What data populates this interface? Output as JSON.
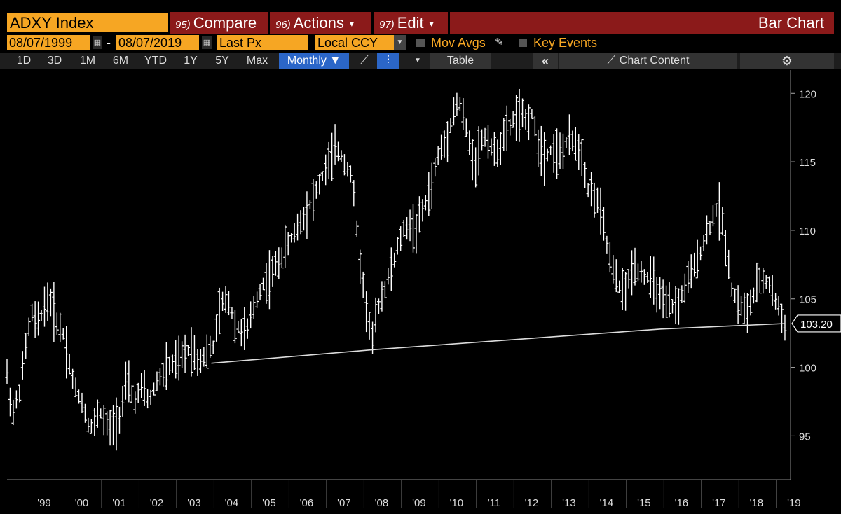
{
  "header": {
    "ticker": "ADXY Index",
    "compare": {
      "num": "95)",
      "label": "Compare"
    },
    "actions": {
      "num": "96)",
      "label": "Actions",
      "caret": "▾"
    },
    "edit": {
      "num": "97)",
      "label": "Edit",
      "caret": "▾"
    },
    "chart_title": "Bar Chart"
  },
  "fields": {
    "start_date": "08/07/1999",
    "separator": "-",
    "end_date": "08/07/2019",
    "price_field": "Last Px",
    "currency": "Local CCY",
    "mov_avgs": "Mov Avgs",
    "key_events": "Key Events"
  },
  "toolbar": {
    "ranges": [
      "1D",
      "3D",
      "1M",
      "6M",
      "YTD",
      "1Y",
      "5Y",
      "Max"
    ],
    "periodicity": "Monthly ▼",
    "table": "Table",
    "collapse": "«",
    "chart_content": "Chart Content",
    "settings_icon": "gear-icon"
  },
  "colors": {
    "accent": "#f6a623",
    "header_red": "#8b1a1a",
    "selected": "#2b66c8",
    "line": "#ffffff",
    "background": "#000000"
  },
  "chart_data": {
    "type": "line",
    "x_tick_labels": [
      "'99",
      "'00",
      "'01",
      "'02",
      "'03",
      "'04",
      "'05",
      "'06",
      "'07",
      "'08",
      "'09",
      "'10",
      "'11",
      "'12",
      "'13",
      "'14",
      "'15",
      "'16",
      "'17",
      "'18",
      "'19"
    ],
    "y_ticks": [
      95,
      100,
      105,
      110,
      115,
      120
    ],
    "ylim": [
      91.8,
      121.7
    ],
    "xlim": [
      1999.0,
      2019.9
    ],
    "last_value": "103.20",
    "series": [
      {
        "points": [
          [
            1999.0,
            99.5
          ],
          [
            1999.15,
            96.5
          ],
          [
            1999.35,
            98.5
          ],
          [
            1999.5,
            101.5
          ],
          [
            1999.65,
            104.0
          ],
          [
            1999.8,
            103.0
          ],
          [
            2000.0,
            104.5
          ],
          [
            2000.15,
            105.0
          ],
          [
            2000.3,
            103.5
          ],
          [
            2000.5,
            102.5
          ],
          [
            2000.65,
            100.5
          ],
          [
            2000.8,
            98.5
          ],
          [
            2001.0,
            97.5
          ],
          [
            2001.15,
            96.0
          ],
          [
            2001.3,
            95.5
          ],
          [
            2001.45,
            97.0
          ],
          [
            2001.6,
            96.0
          ],
          [
            2001.75,
            95.5
          ],
          [
            2002.0,
            96.5
          ],
          [
            2002.2,
            99.0
          ],
          [
            2002.4,
            97.5
          ],
          [
            2002.6,
            98.5
          ],
          [
            2002.8,
            97.5
          ],
          [
            2003.0,
            99.0
          ],
          [
            2003.3,
            100.0
          ],
          [
            2003.6,
            100.5
          ],
          [
            2003.9,
            101.5
          ],
          [
            2004.1,
            100.5
          ],
          [
            2004.3,
            101.0
          ],
          [
            2004.5,
            101.5
          ],
          [
            2004.7,
            104.5
          ],
          [
            2004.9,
            105.0
          ],
          [
            2005.1,
            103.0
          ],
          [
            2005.4,
            102.5
          ],
          [
            2005.6,
            104.5
          ],
          [
            2005.8,
            106.0
          ],
          [
            2006.0,
            106.5
          ],
          [
            2006.3,
            108.0
          ],
          [
            2006.6,
            109.5
          ],
          [
            2006.9,
            111.0
          ],
          [
            2007.2,
            112.5
          ],
          [
            2007.5,
            114.5
          ],
          [
            2007.8,
            116.0
          ],
          [
            2008.0,
            115.0
          ],
          [
            2008.2,
            114.0
          ],
          [
            2008.4,
            108.0
          ],
          [
            2008.6,
            104.0
          ],
          [
            2008.75,
            102.0
          ],
          [
            2008.9,
            104.5
          ],
          [
            2009.1,
            106.0
          ],
          [
            2009.3,
            107.5
          ],
          [
            2009.5,
            109.5
          ],
          [
            2009.7,
            110.5
          ],
          [
            2009.9,
            110.0
          ],
          [
            2010.1,
            111.5
          ],
          [
            2010.3,
            113.0
          ],
          [
            2010.5,
            115.5
          ],
          [
            2010.7,
            116.5
          ],
          [
            2010.9,
            118.5
          ],
          [
            2011.05,
            119.5
          ],
          [
            2011.2,
            118.0
          ],
          [
            2011.35,
            116.0
          ],
          [
            2011.5,
            115.0
          ],
          [
            2011.65,
            116.5
          ],
          [
            2011.8,
            117.0
          ],
          [
            2012.0,
            115.5
          ],
          [
            2012.2,
            116.5
          ],
          [
            2012.4,
            117.5
          ],
          [
            2012.6,
            118.5
          ],
          [
            2012.8,
            118.0
          ],
          [
            2013.0,
            118.5
          ],
          [
            2013.15,
            116.5
          ],
          [
            2013.35,
            115.5
          ],
          [
            2013.55,
            116.0
          ],
          [
            2013.75,
            115.5
          ],
          [
            2013.95,
            116.5
          ],
          [
            2014.15,
            116.5
          ],
          [
            2014.35,
            115.5
          ],
          [
            2014.5,
            113.0
          ],
          [
            2014.7,
            112.5
          ],
          [
            2014.9,
            110.5
          ],
          [
            2015.1,
            107.5
          ],
          [
            2015.3,
            106.0
          ],
          [
            2015.5,
            105.5
          ],
          [
            2015.7,
            107.5
          ],
          [
            2015.9,
            107.0
          ],
          [
            2016.1,
            106.5
          ],
          [
            2016.3,
            106.0
          ],
          [
            2016.5,
            104.5
          ],
          [
            2016.7,
            104.5
          ],
          [
            2016.9,
            104.5
          ],
          [
            2017.1,
            106.0
          ],
          [
            2017.3,
            107.0
          ],
          [
            2017.5,
            108.5
          ],
          [
            2017.7,
            110.0
          ],
          [
            2017.9,
            111.5
          ],
          [
            2018.0,
            111.5
          ],
          [
            2018.15,
            109.5
          ],
          [
            2018.35,
            105.5
          ],
          [
            2018.55,
            104.5
          ],
          [
            2018.75,
            104.0
          ],
          [
            2018.95,
            105.5
          ],
          [
            2019.15,
            106.5
          ],
          [
            2019.35,
            106.0
          ],
          [
            2019.55,
            104.5
          ],
          [
            2019.75,
            103.2
          ]
        ]
      },
      {
        "points": [
          [
            2004.45,
            100.3
          ],
          [
            2008.83,
            101.3
          ],
          [
            2016.45,
            102.8
          ],
          [
            2019.75,
            103.2
          ]
        ]
      }
    ]
  }
}
